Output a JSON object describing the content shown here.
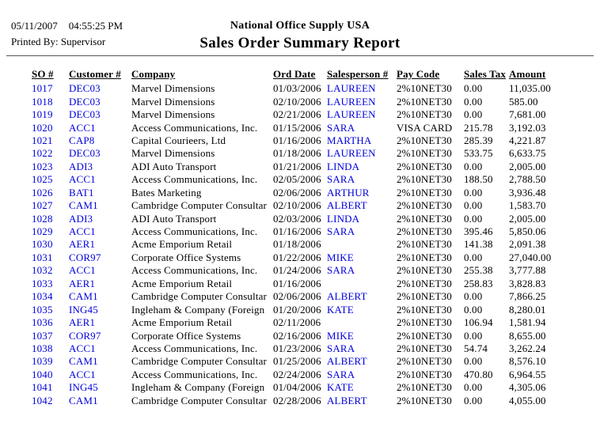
{
  "header": {
    "printed_date": "05/11/2007",
    "printed_time": "04:55:25 PM",
    "printed_by": "Printed By: Supervisor",
    "company_name": "National Office Supply USA",
    "report_title": "Sales Order Summary Report"
  },
  "colors": {
    "link_blue": "#0000dd",
    "text_black": "#000000",
    "rule_gray": "#555555"
  },
  "table": {
    "columns": [
      "SO #",
      "Customer #",
      "Company",
      "Ord Date",
      "Salesperson #",
      "Pay Code",
      "Sales Tax",
      "Amount"
    ],
    "rows": [
      {
        "so": "1017",
        "customer": "DEC03",
        "company": "Marvel Dimensions",
        "ord_date": "01/03/2006",
        "salesperson": "LAUREEN",
        "pay_code": "2%10NET30",
        "sales_tax": "0.00",
        "amount": "11,035.00"
      },
      {
        "so": "1018",
        "customer": "DEC03",
        "company": "Marvel Dimensions",
        "ord_date": "02/10/2006",
        "salesperson": "LAUREEN",
        "pay_code": "2%10NET30",
        "sales_tax": "0.00",
        "amount": "585.00"
      },
      {
        "so": "1019",
        "customer": "DEC03",
        "company": "Marvel Dimensions",
        "ord_date": "02/21/2006",
        "salesperson": "LAUREEN",
        "pay_code": "2%10NET30",
        "sales_tax": "0.00",
        "amount": "7,681.00"
      },
      {
        "so": "1020",
        "customer": "ACC1",
        "company": "Access Communications, Inc.",
        "ord_date": "01/15/2006",
        "salesperson": "SARA",
        "pay_code": "VISA CARD",
        "sales_tax": "215.78",
        "amount": "3,192.03"
      },
      {
        "so": "1021",
        "customer": "CAP8",
        "company": "Capital Courieers, Ltd",
        "ord_date": "01/16/2006",
        "salesperson": "MARTHA",
        "pay_code": "2%10NET30",
        "sales_tax": "285.39",
        "amount": "4,221.87"
      },
      {
        "so": "1022",
        "customer": "DEC03",
        "company": "Marvel Dimensions",
        "ord_date": "01/18/2006",
        "salesperson": "LAUREEN",
        "pay_code": "2%10NET30",
        "sales_tax": "533.75",
        "amount": "6,633.75"
      },
      {
        "so": "1023",
        "customer": "ADI3",
        "company": "ADI Auto Transport",
        "ord_date": "01/21/2006",
        "salesperson": "LINDA",
        "pay_code": "2%10NET30",
        "sales_tax": "0.00",
        "amount": "2,005.00"
      },
      {
        "so": "1025",
        "customer": "ACC1",
        "company": "Access Communications, Inc.",
        "ord_date": "02/05/2006",
        "salesperson": "SARA",
        "pay_code": "2%10NET30",
        "sales_tax": "188.50",
        "amount": "2,788.50"
      },
      {
        "so": "1026",
        "customer": "BAT1",
        "company": "Bates Marketing",
        "ord_date": "02/06/2006",
        "salesperson": "ARTHUR",
        "pay_code": "2%10NET30",
        "sales_tax": "0.00",
        "amount": "3,936.48"
      },
      {
        "so": "1027",
        "customer": "CAM1",
        "company": "Cambridge Computer Consultar",
        "ord_date": "02/10/2006",
        "salesperson": "ALBERT",
        "pay_code": "2%10NET30",
        "sales_tax": "0.00",
        "amount": "1,583.70"
      },
      {
        "so": "1028",
        "customer": "ADI3",
        "company": "ADI Auto Transport",
        "ord_date": "02/03/2006",
        "salesperson": "LINDA",
        "pay_code": "2%10NET30",
        "sales_tax": "0.00",
        "amount": "2,005.00"
      },
      {
        "so": "1029",
        "customer": "ACC1",
        "company": "Access Communications, Inc.",
        "ord_date": "01/16/2006",
        "salesperson": "SARA",
        "pay_code": "2%10NET30",
        "sales_tax": "395.46",
        "amount": "5,850.06"
      },
      {
        "so": "1030",
        "customer": "AER1",
        "company": "Acme Emporium Retail",
        "ord_date": "01/18/2006",
        "salesperson": "",
        "pay_code": "2%10NET30",
        "sales_tax": "141.38",
        "amount": "2,091.38"
      },
      {
        "so": "1031",
        "customer": "COR97",
        "company": "Corporate Office Systems",
        "ord_date": "01/22/2006",
        "salesperson": "MIKE",
        "pay_code": "2%10NET30",
        "sales_tax": "0.00",
        "amount": "27,040.00"
      },
      {
        "so": "1032",
        "customer": "ACC1",
        "company": "Access Communications, Inc.",
        "ord_date": "01/24/2006",
        "salesperson": "SARA",
        "pay_code": "2%10NET30",
        "sales_tax": "255.38",
        "amount": "3,777.88"
      },
      {
        "so": "1033",
        "customer": "AER1",
        "company": "Acme Emporium Retail",
        "ord_date": "01/16/2006",
        "salesperson": "",
        "pay_code": "2%10NET30",
        "sales_tax": "258.83",
        "amount": "3,828.83"
      },
      {
        "so": "1034",
        "customer": "CAM1",
        "company": "Cambridge Computer Consultar",
        "ord_date": "02/06/2006",
        "salesperson": "ALBERT",
        "pay_code": "2%10NET30",
        "sales_tax": "0.00",
        "amount": "7,866.25"
      },
      {
        "so": "1035",
        "customer": "ING45",
        "company": "Ingleham & Company (Foreign",
        "ord_date": "01/20/2006",
        "salesperson": "KATE",
        "pay_code": "2%10NET30",
        "sales_tax": "0.00",
        "amount": "8,280.01"
      },
      {
        "so": "1036",
        "customer": "AER1",
        "company": "Acme Emporium Retail",
        "ord_date": "02/11/2006",
        "salesperson": "",
        "pay_code": "2%10NET30",
        "sales_tax": "106.94",
        "amount": "1,581.94"
      },
      {
        "so": "1037",
        "customer": "COR97",
        "company": "Corporate Office Systems",
        "ord_date": "02/16/2006",
        "salesperson": "MIKE",
        "pay_code": "2%10NET30",
        "sales_tax": "0.00",
        "amount": "8,655.00"
      },
      {
        "so": "1038",
        "customer": "ACC1",
        "company": "Access Communications, Inc.",
        "ord_date": "01/23/2006",
        "salesperson": "SARA",
        "pay_code": "2%10NET30",
        "sales_tax": "54.74",
        "amount": "3,262.24"
      },
      {
        "so": "1039",
        "customer": "CAM1",
        "company": "Cambridge Computer Consultar",
        "ord_date": "01/25/2006",
        "salesperson": "ALBERT",
        "pay_code": "2%10NET30",
        "sales_tax": "0.00",
        "amount": "8,576.10"
      },
      {
        "so": "1040",
        "customer": "ACC1",
        "company": "Access Communications, Inc.",
        "ord_date": "02/24/2006",
        "salesperson": "SARA",
        "pay_code": "2%10NET30",
        "sales_tax": "470.80",
        "amount": "6,964.55"
      },
      {
        "so": "1041",
        "customer": "ING45",
        "company": "Ingleham & Company (Foreign",
        "ord_date": "01/04/2006",
        "salesperson": "KATE",
        "pay_code": "2%10NET30",
        "sales_tax": "0.00",
        "amount": "4,305.06"
      },
      {
        "so": "1042",
        "customer": "CAM1",
        "company": "Cambridge Computer Consultar",
        "ord_date": "02/28/2006",
        "salesperson": "ALBERT",
        "pay_code": "2%10NET30",
        "sales_tax": "0.00",
        "amount": "4,055.00"
      }
    ]
  }
}
